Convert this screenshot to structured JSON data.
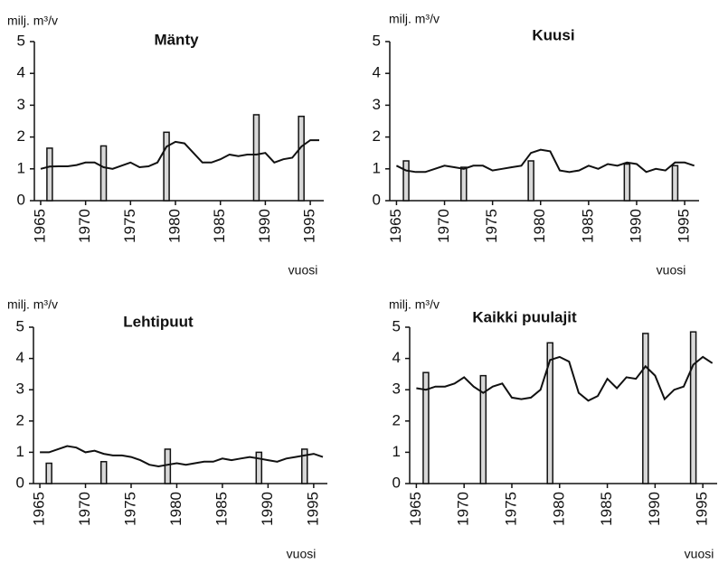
{
  "chart_data": [
    {
      "type": "combo",
      "title": "Mänty",
      "y_label": "milj. m³/v",
      "x_label": "vuosi",
      "xlim": [
        1964.3,
        1996.5
      ],
      "xticks": [
        1965,
        1970,
        1975,
        1980,
        1985,
        1990,
        1995
      ],
      "ylim": [
        0,
        5
      ],
      "yticks": [
        0,
        1,
        2,
        3,
        4,
        5
      ],
      "grid": false,
      "series": [
        {
          "type": "bar",
          "color": "#d8d8d8",
          "x": [
            1966,
            1972,
            1979,
            1989,
            1994
          ],
          "values": [
            1.65,
            1.72,
            2.15,
            2.7,
            2.65
          ]
        },
        {
          "type": "line",
          "color": "#111111",
          "x": [
            1965,
            1966,
            1967,
            1968,
            1969,
            1970,
            1971,
            1972,
            1973,
            1974,
            1975,
            1976,
            1977,
            1978,
            1979,
            1980,
            1981,
            1982,
            1983,
            1984,
            1985,
            1986,
            1987,
            1988,
            1989,
            1990,
            1991,
            1992,
            1993,
            1994,
            1995,
            1996
          ],
          "values": [
            1.0,
            1.07,
            1.08,
            1.08,
            1.12,
            1.2,
            1.2,
            1.05,
            1.0,
            1.1,
            1.2,
            1.05,
            1.08,
            1.2,
            1.7,
            1.85,
            1.8,
            1.5,
            1.2,
            1.2,
            1.3,
            1.45,
            1.4,
            1.45,
            1.45,
            1.5,
            1.2,
            1.3,
            1.35,
            1.7,
            1.9,
            1.9
          ]
        }
      ]
    },
    {
      "type": "combo",
      "title": "Kuusi",
      "y_label": "milj. m³/v",
      "x_label": "vuosi",
      "xlim": [
        1964.3,
        1996.5
      ],
      "xticks": [
        1965,
        1970,
        1975,
        1980,
        1985,
        1990,
        1995
      ],
      "ylim": [
        0,
        5
      ],
      "yticks": [
        0,
        1,
        2,
        3,
        4,
        5
      ],
      "grid": false,
      "series": [
        {
          "type": "bar",
          "color": "#d8d8d8",
          "x": [
            1966,
            1972,
            1979,
            1989,
            1994
          ],
          "values": [
            1.25,
            1.05,
            1.25,
            1.15,
            1.1
          ]
        },
        {
          "type": "line",
          "color": "#111111",
          "x": [
            1965,
            1966,
            1967,
            1968,
            1969,
            1970,
            1971,
            1972,
            1973,
            1974,
            1975,
            1976,
            1977,
            1978,
            1979,
            1980,
            1981,
            1982,
            1983,
            1984,
            1985,
            1986,
            1987,
            1988,
            1989,
            1990,
            1991,
            1992,
            1993,
            1994,
            1995,
            1996
          ],
          "values": [
            1.1,
            0.95,
            0.9,
            0.9,
            1.0,
            1.1,
            1.05,
            1.0,
            1.1,
            1.1,
            0.95,
            1.0,
            1.05,
            1.1,
            1.5,
            1.6,
            1.55,
            0.95,
            0.9,
            0.95,
            1.1,
            1.0,
            1.15,
            1.1,
            1.2,
            1.15,
            0.9,
            1.0,
            0.95,
            1.2,
            1.2,
            1.1
          ]
        }
      ]
    },
    {
      "type": "combo",
      "title": "Lehtipuut",
      "y_label": "milj. m³/v",
      "x_label": "vuosi",
      "xlim": [
        1964.3,
        1996.5
      ],
      "xticks": [
        1965,
        1970,
        1975,
        1980,
        1985,
        1990,
        1995
      ],
      "ylim": [
        0,
        5
      ],
      "yticks": [
        0,
        1,
        2,
        3,
        4,
        5
      ],
      "grid": false,
      "series": [
        {
          "type": "bar",
          "color": "#d8d8d8",
          "x": [
            1966,
            1972,
            1979,
            1989,
            1994
          ],
          "values": [
            0.65,
            0.7,
            1.1,
            1.0,
            1.1
          ]
        },
        {
          "type": "line",
          "color": "#111111",
          "x": [
            1965,
            1966,
            1967,
            1968,
            1969,
            1970,
            1971,
            1972,
            1973,
            1974,
            1975,
            1976,
            1977,
            1978,
            1979,
            1980,
            1981,
            1982,
            1983,
            1984,
            1985,
            1986,
            1987,
            1988,
            1989,
            1990,
            1991,
            1992,
            1993,
            1994,
            1995,
            1996
          ],
          "values": [
            1.0,
            1.0,
            1.1,
            1.2,
            1.15,
            1.0,
            1.05,
            0.95,
            0.9,
            0.9,
            0.85,
            0.75,
            0.6,
            0.55,
            0.6,
            0.65,
            0.6,
            0.65,
            0.7,
            0.7,
            0.8,
            0.75,
            0.8,
            0.85,
            0.8,
            0.75,
            0.7,
            0.8,
            0.85,
            0.9,
            0.95,
            0.85
          ]
        }
      ]
    },
    {
      "type": "combo",
      "title": "Kaikki puulajit",
      "y_label": "milj. m³/v",
      "x_label": "vuosi",
      "xlim": [
        1964.3,
        1996.5
      ],
      "xticks": [
        1965,
        1970,
        1975,
        1980,
        1985,
        1990,
        1995
      ],
      "ylim": [
        0,
        5
      ],
      "yticks": [
        0,
        1,
        2,
        3,
        4,
        5
      ],
      "grid": false,
      "series": [
        {
          "type": "bar",
          "color": "#d8d8d8",
          "x": [
            1966,
            1972,
            1979,
            1989,
            1994
          ],
          "values": [
            3.55,
            3.45,
            4.5,
            4.8,
            4.85
          ]
        },
        {
          "type": "line",
          "color": "#111111",
          "x": [
            1965,
            1966,
            1967,
            1968,
            1969,
            1970,
            1971,
            1972,
            1973,
            1974,
            1975,
            1976,
            1977,
            1978,
            1979,
            1980,
            1981,
            1982,
            1983,
            1984,
            1985,
            1986,
            1987,
            1988,
            1989,
            1990,
            1991,
            1992,
            1993,
            1994,
            1995,
            1996
          ],
          "values": [
            3.05,
            3.0,
            3.1,
            3.1,
            3.2,
            3.4,
            3.1,
            2.9,
            3.1,
            3.2,
            2.75,
            2.7,
            2.75,
            3.0,
            3.95,
            4.05,
            3.9,
            2.9,
            2.65,
            2.8,
            3.35,
            3.05,
            3.4,
            3.35,
            3.75,
            3.45,
            2.7,
            3.0,
            3.1,
            3.8,
            4.05,
            3.85
          ]
        }
      ]
    }
  ]
}
